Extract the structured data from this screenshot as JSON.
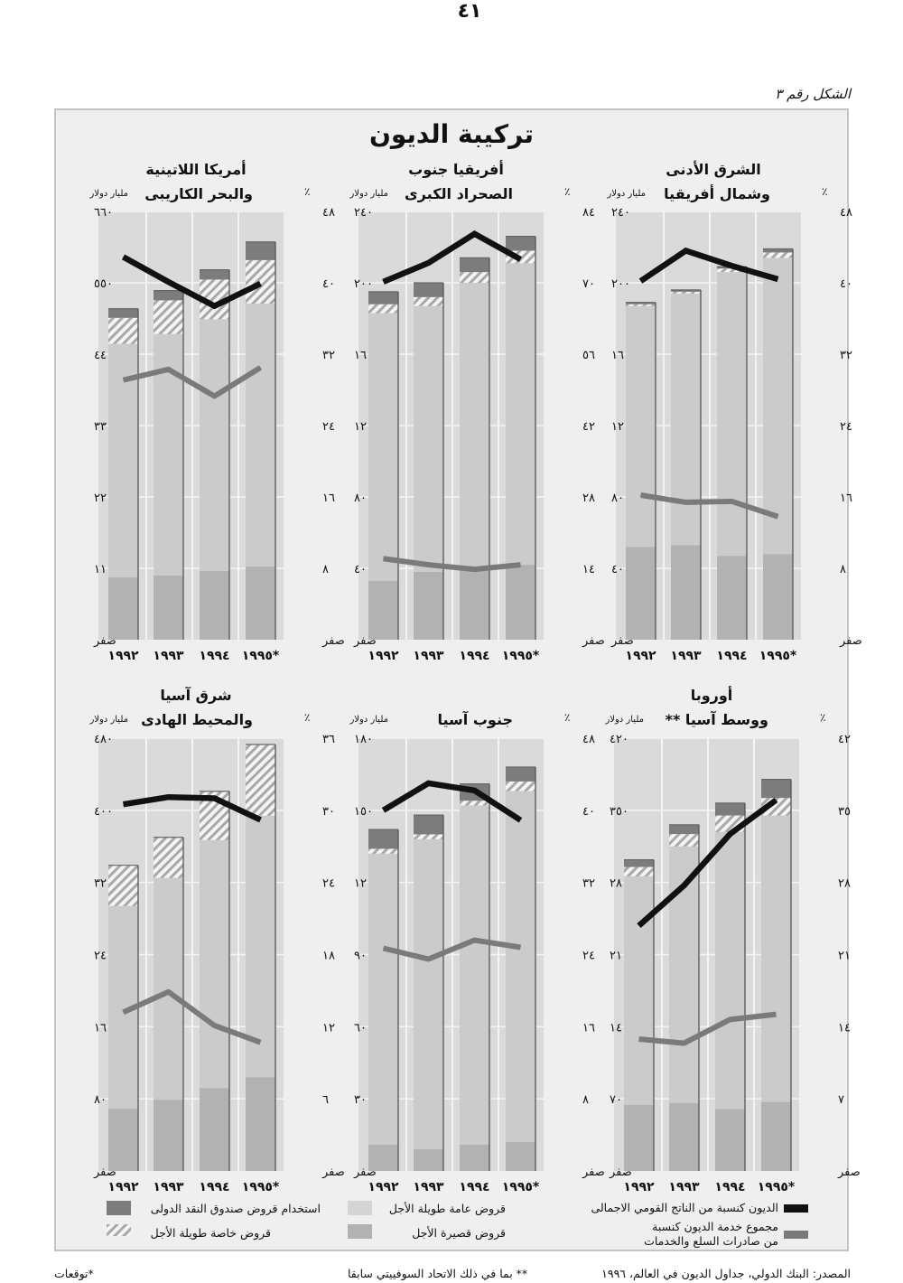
{
  "page_number": "٤١",
  "figure_label": "الشكل رقم ٣",
  "figure_title": "تركيبة الديون",
  "colors": {
    "frame_bg": "#efefef",
    "plot_bg": "#dadada",
    "public_long_term": "#cbcbcb",
    "short_term": "#b2b2b2",
    "imf_credit": "#7c7c7c",
    "private_long_term_hatch": "#a8a8a8",
    "debt_to_gnp_line": "#111111",
    "debt_service_line": "#7a7a7a"
  },
  "legend": {
    "debt_to_gnp": "الديون كنسبة من الناتج القومي الاجمالى",
    "debt_service_line1": "مجموع خدمة الديون كنسبة",
    "debt_service_line2": "من صادرات السلع والخدمات",
    "public_long_term": "قروض عامة طويلة الأجل",
    "short_term": "قروض قصيرة الأجل",
    "imf_credit": "استخدام قروض صندوق النقد الدولى",
    "private_long_term": "قروض خاصة طويلة الأجل"
  },
  "footer": {
    "source": "المصدر: البنك الدولي، جداول الديون في العالم، ١٩٩٦",
    "double_star_note": "** بما في ذلك الاتحاد السوفييتي سابقا",
    "star_note": "*توقعات"
  },
  "chart_data": [
    {
      "type": "bar",
      "title": [
        "الشرق الأدنى",
        "وشمال أفريقيا"
      ],
      "ylabel_left": "مليار دولار",
      "ylabel_right": "٪",
      "ylim": [
        0,
        240
      ],
      "ylim_right": [
        0,
        48
      ],
      "left_ticks": [
        "صفر",
        "٤٠",
        "٨٠",
        "١٢٠",
        "١٦٠",
        "٢٠٠",
        "٢٤٠"
      ],
      "right_ticks": [
        "صفر",
        "٨",
        "١٦",
        "٢٤",
        "٣٢",
        "٤٠",
        "٤٨"
      ],
      "categories": [
        "١٩٩٢",
        "١٩٩٣",
        "١٩٩٤",
        "*١٩٩٥"
      ],
      "short_term": [
        52,
        53,
        47,
        48
      ],
      "public_long_term": [
        135,
        141,
        159,
        166
      ],
      "private_long_term": [
        1,
        1,
        2,
        3
      ],
      "imf_credit": [
        1,
        1,
        1,
        2
      ],
      "debt_to_gnp": [
        40.2,
        43.6,
        41.9,
        40.4
      ],
      "debt_service_to_exports": [
        16.2,
        15.4,
        15.5,
        13.8
      ]
    },
    {
      "type": "bar",
      "title": [
        "أفريقيا جنوب",
        "الصحراد الكبرى"
      ],
      "ylabel_left": "مليار دولار",
      "ylabel_right": "٪",
      "ylim": [
        0,
        240
      ],
      "ylim_right": [
        0,
        84
      ],
      "left_ticks": [
        "صفر",
        "٤٠",
        "٨٠",
        "١٢٠",
        "١٦٠",
        "٢٠٠",
        "٢٤٠"
      ],
      "right_ticks": [
        "صفر",
        "١٤",
        "٢٨",
        "٤٢",
        "٥٦",
        "٧٠",
        "٨٤"
      ],
      "categories": [
        "١٩٩٢",
        "١٩٩٣",
        "١٩٩٤",
        "*١٩٩٥"
      ],
      "short_term": [
        33,
        38,
        39,
        42
      ],
      "public_long_term": [
        150,
        149,
        161,
        169
      ],
      "private_long_term": [
        5,
        5,
        6,
        7
      ],
      "imf_credit": [
        7,
        8,
        8,
        8
      ],
      "debt_to_gnp": [
        70.2,
        73.9,
        79.6,
        74.6
      ],
      "debt_service_to_exports": [
        15.9,
        14.7,
        13.8,
        14.7
      ]
    },
    {
      "type": "bar",
      "title": [
        "أمريكا اللاتينية",
        "والبحر الكاريبى"
      ],
      "ylabel_left": "مليار دولار",
      "ylabel_right": "٪",
      "ylim": [
        0,
        660
      ],
      "ylim_right": [
        0,
        48
      ],
      "left_ticks": [
        "صفر",
        "١١٠",
        "٢٢٠",
        "٣٣٠",
        "٤٤٠",
        "٥٥٠",
        "٦٦٠"
      ],
      "right_ticks": [
        "صفر",
        "٨",
        "١٦",
        "٢٤",
        "٣٢",
        "٤٠",
        "٤٨"
      ],
      "categories": [
        "١٩٩٢",
        "١٩٩٣",
        "١٩٩٤",
        "*١٩٩٥"
      ],
      "short_term": [
        96,
        99,
        106,
        113
      ],
      "public_long_term": [
        360,
        372,
        388,
        405
      ],
      "private_long_term": [
        40,
        52,
        61,
        67
      ],
      "imf_credit": [
        14,
        15,
        15,
        28
      ],
      "debt_to_gnp": [
        42.9,
        40.1,
        37.4,
        39.9
      ],
      "debt_service_to_exports": [
        29.1,
        30.3,
        27.3,
        30.5
      ]
    },
    {
      "type": "bar",
      "title": [
        "أوروبا",
        "ووسط آسيا **"
      ],
      "ylabel_left": "مليار دولار",
      "ylabel_right": "٪",
      "ylim": [
        0,
        420
      ],
      "ylim_right": [
        0,
        42
      ],
      "left_ticks": [
        "صفر",
        "٧٠",
        "١٤٠",
        "٢١٠",
        "٢٨٠",
        "٣٥٠",
        "٤٢٠"
      ],
      "right_ticks": [
        "صفر",
        "٧",
        "١٤",
        "٢١",
        "٢٨",
        "٣٥",
        "٤٢"
      ],
      "categories": [
        "١٩٩٢",
        "١٩٩٣",
        "١٩٩٤",
        "*١٩٩٥"
      ],
      "short_term": [
        64,
        66,
        60,
        67
      ],
      "public_long_term": [
        222,
        249,
        269,
        278
      ],
      "private_long_term": [
        9,
        12,
        16,
        17
      ],
      "imf_credit": [
        7,
        9,
        12,
        18
      ],
      "debt_to_gnp": [
        23.8,
        27.7,
        32.7,
        36.0
      ],
      "debt_service_to_exports": [
        12.8,
        12.4,
        14.7,
        15.2
      ]
    },
    {
      "type": "bar",
      "title": [
        "",
        "جنوب آسيا"
      ],
      "ylabel_left": "مليار دولار",
      "ylabel_right": "٪",
      "ylim": [
        0,
        180
      ],
      "ylim_right": [
        0,
        48
      ],
      "left_ticks": [
        "صفر",
        "٣٠",
        "٦٠",
        "٩٠",
        "١٢٠",
        "١٥٠",
        "١٨٠"
      ],
      "right_ticks": [
        "صفر",
        "٨",
        "١٦",
        "٢٤",
        "٣٢",
        "٤٠",
        "٤٨"
      ],
      "categories": [
        "١٩٩٢",
        "١٩٩٣",
        "١٩٩٤",
        "*١٩٩٥"
      ],
      "short_term": [
        11,
        9,
        11,
        12
      ],
      "public_long_term": [
        121,
        129,
        141,
        146
      ],
      "private_long_term": [
        2,
        2,
        2,
        4
      ],
      "imf_credit": [
        8,
        8,
        7,
        6
      ],
      "debt_to_gnp": [
        40.0,
        43.0,
        42.2,
        38.9
      ],
      "debt_service_to_exports": [
        24.7,
        23.5,
        25.6,
        24.8
      ]
    },
    {
      "type": "bar",
      "title": [
        "شرق آسيا",
        "والمحيط الهادى"
      ],
      "ylabel_left": "مليار دولار",
      "ylabel_right": "٪",
      "ylim": [
        0,
        480
      ],
      "ylim_right": [
        0,
        36
      ],
      "left_ticks": [
        "صفر",
        "٨٠",
        "١٦٠",
        "٢٤٠",
        "٣٢٠",
        "٤٠٠",
        "٤٨٠"
      ],
      "right_ticks": [
        "صفر",
        "٦",
        "١٢",
        "١٨",
        "٢٤",
        "٣٠",
        "٣٦"
      ],
      "categories": [
        "١٩٩٢",
        "١٩٩٣",
        "١٩٩٤",
        "*١٩٩٥"
      ],
      "short_term": [
        69,
        79,
        92,
        104
      ],
      "public_long_term": [
        225,
        246,
        275,
        290
      ],
      "private_long_term": [
        45,
        45,
        54,
        79
      ],
      "imf_credit": [
        0,
        0,
        0,
        0
      ],
      "debt_to_gnp": [
        30.5,
        31.1,
        31.0,
        29.2
      ],
      "debt_service_to_exports": [
        13.2,
        14.9,
        12.1,
        10.7
      ]
    }
  ]
}
